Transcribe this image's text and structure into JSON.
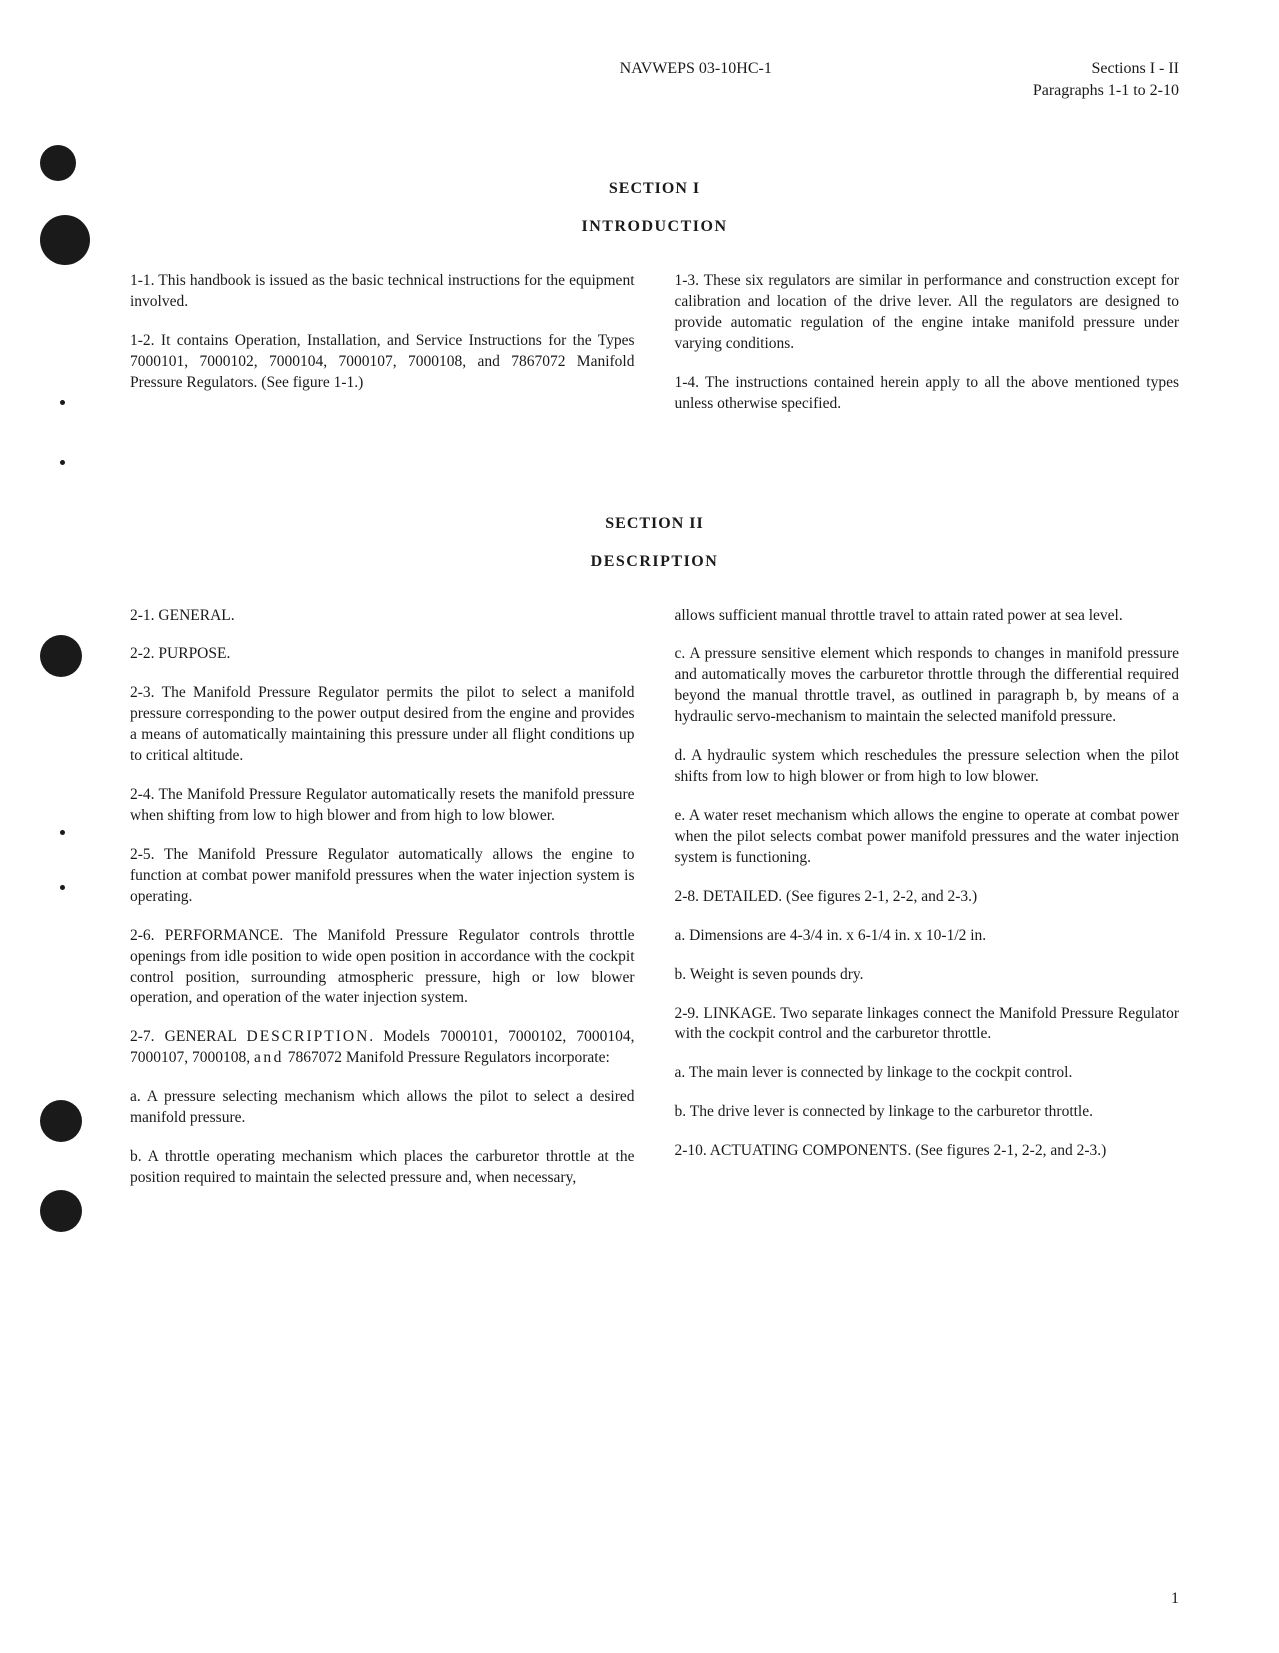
{
  "header": {
    "doc_id": "NAVWEPS 03-10HC-1",
    "sections": "Sections I - II",
    "paragraphs": "Paragraphs 1-1 to 2-10"
  },
  "section1": {
    "title": "SECTION I",
    "subtitle": "INTRODUCTION",
    "left": {
      "p1": "1-1. This handbook is issued as the basic technical instructions for the equipment involved.",
      "p2": "1-2. It contains Operation, Installation, and Service Instructions for the Types 7000101, 7000102, 7000104, 7000107, 7000108, and 7867072 Manifold Pressure Regulators. (See figure 1-1.)"
    },
    "right": {
      "p1": "1-3. These six regulators are similar in performance and construction except for calibration and location of the drive lever. All the regulators are designed to provide automatic regulation of the engine intake manifold pressure under varying conditions.",
      "p2": "1-4. The instructions contained herein apply to all the above mentioned types unless otherwise specified."
    }
  },
  "section2": {
    "title": "SECTION II",
    "subtitle": "DESCRIPTION",
    "left": {
      "p1": "2-1. GENERAL.",
      "p2": "2-2. PURPOSE.",
      "p3": "2-3. The Manifold Pressure Regulator permits the pilot to select a manifold pressure corresponding to the power output desired from the engine and provides a means of automatically maintaining this pressure under all flight conditions up to critical altitude.",
      "p4": "2-4. The Manifold Pressure Regulator automatically resets the manifold pressure when shifting from low to high blower and from high to low blower.",
      "p5": "2-5. The Manifold Pressure Regulator automatically allows the engine to function at combat power manifold pressures when the water injection system is operating.",
      "p6": "2-6. PERFORMANCE. The Manifold Pressure Regulator controls throttle openings from idle position to wide open position in accordance with the cockpit control position, surrounding atmospheric pressure, high or low blower operation, and operation of the water injection system.",
      "p7_prefix": "2-7. GENERAL ",
      "p7_desc": "DESCRIPTION",
      "p7_mid": ". Models 7000101, 7000102, 7000104, 7000107, 7000108, ",
      "p7_and": "and",
      "p7_suffix": " 7867072 Manifold Pressure Regulators incorporate:",
      "p8": "a. A pressure selecting mechanism which allows the pilot to select a desired manifold pressure.",
      "p9": "b. A throttle operating mechanism which places the carburetor throttle at the position required to maintain the selected pressure and, when necessary,"
    },
    "right": {
      "p1": "allows sufficient manual throttle travel to attain rated power at sea level.",
      "p2": "c. A pressure sensitive element which responds to changes in manifold pressure and automatically moves the carburetor throttle through the differential required beyond the manual throttle travel, as outlined in paragraph b, by means of a hydraulic servo-mechanism to maintain the selected manifold pressure.",
      "p3": "d. A hydraulic system which reschedules the pressure selection when the pilot shifts from low to high blower or from high to low blower.",
      "p4": "e. A water reset mechanism which allows the engine to operate at combat power when the pilot selects combat power manifold pressures and the water injection system is functioning.",
      "p5": "2-8. DETAILED. (See figures 2-1, 2-2, and 2-3.)",
      "p6": "a. Dimensions are 4-3/4 in. x 6-1/4 in. x 10-1/2 in.",
      "p7": "b. Weight is seven pounds dry.",
      "p8": "2-9. LINKAGE. Two separate linkages connect the Manifold Pressure Regulator with the cockpit control and the carburetor throttle.",
      "p9": "a. The main lever is connected by linkage to the cockpit control.",
      "p10": "b. The drive lever is connected by linkage to the carburetor throttle.",
      "p11": "2-10. ACTUATING COMPONENTS. (See figures 2-1, 2-2, and 2-3.)"
    }
  },
  "page_number": "1"
}
